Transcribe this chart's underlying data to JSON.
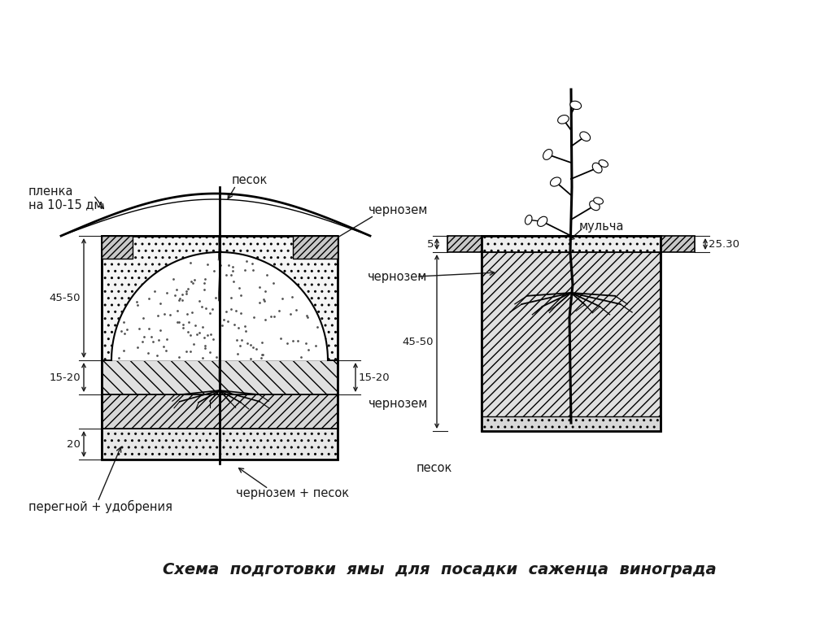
{
  "bg_color": "#ffffff",
  "line_color": "#1a1a1a",
  "title": "Схема  подготовки  ямы  для  посадки  саженца  винограда",
  "title_fontsize": 14,
  "title_style": "italic",
  "title_weight": "bold",
  "left_labels": {
    "plenka": "пленка",
    "na_dm": "на 10-15 дм",
    "pesok": "песок",
    "chernozem": "чернозем",
    "chernozem_pesok": "чернозем + песок",
    "peregnoy": "перегной + удобрения",
    "chernozem2": "чернозем"
  },
  "right_labels": {
    "mulcha": "мульча",
    "chernozem": "чернозем",
    "pesok": "песок"
  },
  "dim_45_50": "45-50",
  "dim_15_20_L": "15-20",
  "dim_15_20_R": "15-20",
  "dim_20": "20",
  "dim_5": "5",
  "dim_r_45_50": "45-50",
  "dim_r_25_30": "25.30"
}
